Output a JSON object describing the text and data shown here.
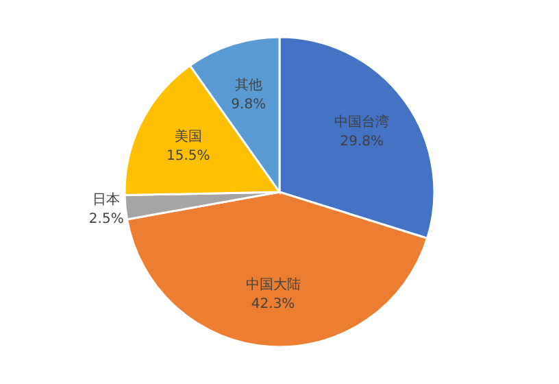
{
  "chart_data": {
    "type": "pie",
    "categories": [
      "中国台湾",
      "中国大陆",
      "日本",
      "美国",
      "其他"
    ],
    "values": [
      29.8,
      42.3,
      2.5,
      15.5,
      9.8
    ],
    "colors": [
      "#4472c4",
      "#ed7d31",
      "#a5a5a5",
      "#ffc000",
      "#5b9bd5"
    ],
    "value_labels": [
      "29.8%",
      "42.3%",
      "2.5%",
      "15.5%",
      "9.8%"
    ]
  }
}
